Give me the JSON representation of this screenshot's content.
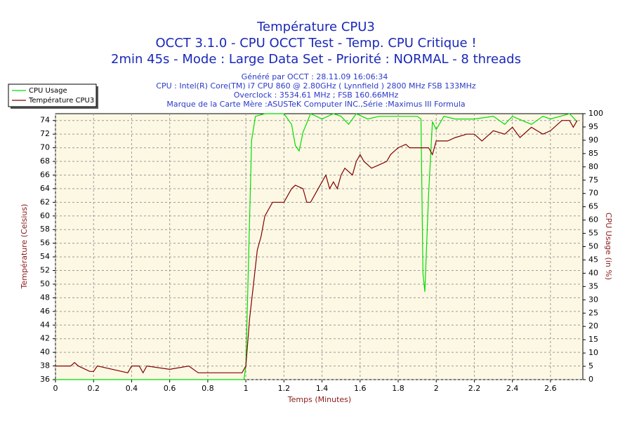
{
  "chart_data": {
    "type": "line",
    "titles": [
      "Température CPU3",
      "OCCT 3.1.0 - CPU OCCT Test - Temp. CPU Critique !",
      "2min 45s - Mode : Large Data Set - Priorité : NORMAL - 8 threads"
    ],
    "info": [
      "Généré par OCCT : 28.11.09 16:06:34",
      "CPU : Intel(R) Core(TM) i7 CPU 860 @ 2.80GHz ( Lynnfield ) 2800 MHz FSB 133MHz",
      "Overclock : 3534.61 MHz ; FSB 160.66MHz",
      "Marque de la Carte Mère :ASUSTeK Computer INC.,Série :Maximus III Formula"
    ],
    "x_label": "Temps (Minutes)",
    "y_label": "Température (Celsius)",
    "y2_label": "CPU Usage (in %)",
    "xlim": [
      0,
      2.77
    ],
    "xticks": [
      0,
      0.2,
      0.4,
      0.6,
      0.8,
      1,
      1.2,
      1.4,
      1.6,
      1.8,
      2,
      2.2,
      2.4,
      2.6
    ],
    "ylim": [
      36,
      75
    ],
    "yticks": [
      36,
      38,
      40,
      42,
      44,
      46,
      48,
      50,
      52,
      54,
      56,
      58,
      60,
      62,
      64,
      66,
      68,
      70,
      72,
      74
    ],
    "y2lim": [
      0,
      100
    ],
    "y2ticks": [
      0,
      5,
      10,
      15,
      20,
      25,
      30,
      35,
      40,
      45,
      50,
      55,
      60,
      65,
      70,
      75,
      80,
      85,
      90,
      95,
      100
    ],
    "grid": true,
    "legend": "top-left",
    "series": [
      {
        "name": "CPU Usage",
        "color": "#00dd00",
        "axis": "y2",
        "x": [
          0,
          0.99,
          1.0,
          1.03,
          1.05,
          1.1,
          1.2,
          1.24,
          1.26,
          1.28,
          1.3,
          1.34,
          1.4,
          1.46,
          1.5,
          1.54,
          1.58,
          1.64,
          1.7,
          1.8,
          1.9,
          1.92,
          1.93,
          1.94,
          1.96,
          1.98,
          2.0,
          2.04,
          2.1,
          2.2,
          2.3,
          2.36,
          2.4,
          2.5,
          2.56,
          2.6,
          2.7,
          2.74
        ],
        "values": [
          0,
          0,
          5,
          90,
          99,
          100,
          100,
          96,
          88,
          86,
          93,
          100,
          98,
          100,
          99,
          96,
          100,
          98,
          99,
          99,
          99,
          98,
          40,
          33,
          70,
          97,
          94,
          99,
          98,
          98,
          99,
          96,
          99,
          96,
          99,
          98,
          100,
          97
        ]
      },
      {
        "name": "Température CPU3",
        "color": "#800000",
        "axis": "y",
        "x": [
          0,
          0.08,
          0.1,
          0.12,
          0.18,
          0.2,
          0.22,
          0.38,
          0.4,
          0.44,
          0.46,
          0.48,
          0.6,
          0.7,
          0.75,
          0.8,
          0.98,
          1.0,
          1.02,
          1.04,
          1.06,
          1.08,
          1.1,
          1.14,
          1.2,
          1.24,
          1.26,
          1.3,
          1.32,
          1.34,
          1.38,
          1.42,
          1.44,
          1.46,
          1.48,
          1.5,
          1.52,
          1.56,
          1.58,
          1.6,
          1.62,
          1.66,
          1.7,
          1.74,
          1.76,
          1.8,
          1.84,
          1.86,
          1.96,
          1.98,
          2.0,
          2.06,
          2.1,
          2.16,
          2.2,
          2.24,
          2.3,
          2.36,
          2.4,
          2.44,
          2.5,
          2.56,
          2.6,
          2.66,
          2.7,
          2.72,
          2.74
        ],
        "values": [
          38,
          38,
          38.5,
          38,
          37.2,
          37.2,
          38,
          37,
          38,
          38,
          37,
          38,
          37.5,
          38,
          37,
          37,
          37,
          38,
          45,
          50,
          55,
          57,
          60,
          62,
          62,
          64,
          64.5,
          64,
          62,
          62,
          64,
          66,
          64,
          65,
          64,
          66,
          67,
          66,
          68,
          69,
          68,
          67,
          67.5,
          68,
          69,
          70,
          70.5,
          70,
          70,
          69,
          71,
          71,
          71.5,
          72,
          72,
          71,
          72.5,
          72,
          73,
          71.5,
          73,
          72,
          72.5,
          74,
          74,
          73,
          74
        ]
      }
    ]
  }
}
